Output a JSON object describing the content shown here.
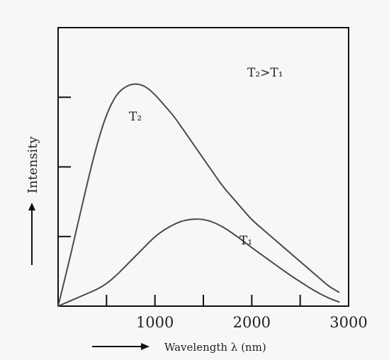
{
  "chart_data": {
    "type": "line",
    "xlabel": "Wavelength λ (nm)",
    "ylabel": "Intensity",
    "xlim": [
      0,
      3000
    ],
    "ylim": [
      0,
      10
    ],
    "x_ticks": [
      500,
      1000,
      1500,
      2000,
      2500
    ],
    "x_tick_labels": [
      "1000",
      "2000",
      "3000"
    ],
    "x_tick_label_positions": [
      1000,
      2000,
      3000
    ],
    "y_ticks": [
      2.5,
      5,
      7.5,
      10
    ],
    "grid": false,
    "annotation": "T₂>T₁",
    "series": [
      {
        "name": "T₂",
        "x": [
          0,
          100,
          200,
          300,
          400,
          500,
          600,
          700,
          800,
          900,
          1000,
          1100,
          1200,
          1300,
          1400,
          1500,
          1600,
          1700,
          1800,
          1900,
          2000,
          2100,
          2200,
          2300,
          2400,
          2500,
          2600,
          2700,
          2800,
          2900
        ],
        "y": [
          0,
          1.4,
          2.9,
          4.4,
          5.8,
          6.9,
          7.6,
          7.9,
          8.0,
          7.9,
          7.6,
          7.2,
          6.8,
          6.3,
          5.8,
          5.3,
          4.8,
          4.3,
          3.9,
          3.5,
          3.1,
          2.8,
          2.5,
          2.2,
          1.9,
          1.6,
          1.3,
          1.0,
          0.7,
          0.5
        ]
      },
      {
        "name": "T₁",
        "x": [
          0,
          100,
          200,
          300,
          400,
          500,
          600,
          700,
          800,
          900,
          1000,
          1100,
          1200,
          1300,
          1400,
          1500,
          1600,
          1700,
          1800,
          1900,
          2000,
          2100,
          2200,
          2300,
          2400,
          2500,
          2600,
          2700,
          2800,
          2900
        ],
        "y": [
          0,
          0.15,
          0.3,
          0.45,
          0.6,
          0.8,
          1.1,
          1.45,
          1.8,
          2.15,
          2.5,
          2.75,
          2.95,
          3.08,
          3.13,
          3.12,
          3.02,
          2.85,
          2.62,
          2.37,
          2.1,
          1.85,
          1.6,
          1.35,
          1.1,
          0.88,
          0.65,
          0.45,
          0.28,
          0.15
        ]
      }
    ],
    "colors": {
      "curve": "#4a4a4a",
      "axis": "#111111"
    }
  }
}
